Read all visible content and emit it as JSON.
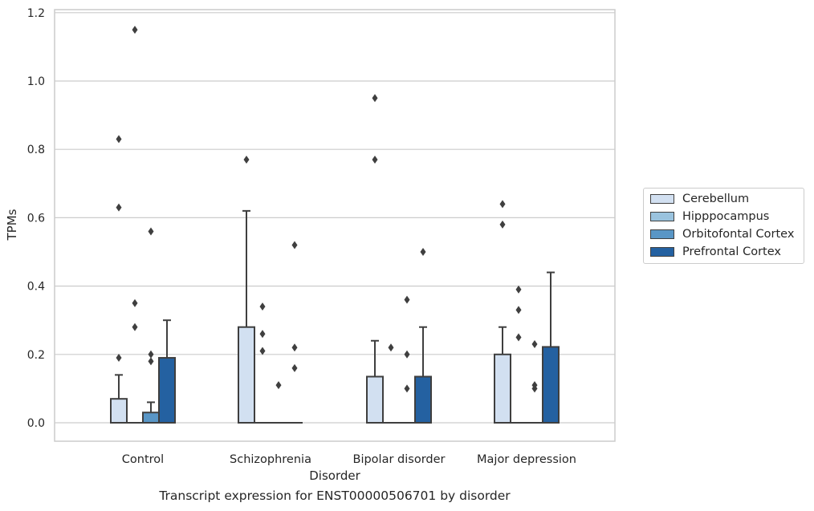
{
  "chart_data": {
    "type": "box",
    "title": "Transcript expression for ENST00000506701 by disorder",
    "xlabel": "Disorder",
    "ylabel": "TPMs",
    "ylim": [
      -0.055,
      1.21
    ],
    "yticks": [
      "0.0",
      "0.2",
      "0.4",
      "0.6",
      "0.8",
      "1.0",
      "1.2"
    ],
    "categories": [
      "Control",
      "Schizophrenia",
      "Bipolar disorder",
      "Major depression"
    ],
    "grid": "horizontal",
    "legend_position": "right",
    "series": [
      {
        "name": "Cerebellum",
        "color": "#d2e0f1",
        "boxes": [
          {
            "q1": 0.0,
            "median": 0.0,
            "q3": 0.07,
            "whisker_low": 0.0,
            "whisker_high": 0.14,
            "outliers": [
              0.19,
              0.63,
              0.83
            ]
          },
          {
            "q1": 0.0,
            "median": 0.0,
            "q3": 0.28,
            "whisker_low": 0.0,
            "whisker_high": 0.62,
            "outliers": [
              0.77
            ]
          },
          {
            "q1": 0.0,
            "median": 0.0,
            "q3": 0.135,
            "whisker_low": 0.0,
            "whisker_high": 0.24,
            "outliers": [
              0.77,
              0.95
            ]
          },
          {
            "q1": 0.0,
            "median": 0.0,
            "q3": 0.2,
            "whisker_low": 0.0,
            "whisker_high": 0.28,
            "outliers": [
              0.58,
              0.64
            ]
          }
        ]
      },
      {
        "name": "Hipppocampus",
        "color": "#9ac3de",
        "boxes": [
          {
            "q1": 0.0,
            "median": 0.0,
            "q3": 0.0,
            "whisker_low": 0.0,
            "whisker_high": 0.0,
            "outliers": [
              0.28,
              0.35,
              1.15
            ]
          },
          {
            "q1": 0.0,
            "median": 0.0,
            "q3": 0.0,
            "whisker_low": 0.0,
            "whisker_high": 0.0,
            "outliers": [
              0.21,
              0.26,
              0.34
            ]
          },
          {
            "q1": 0.0,
            "median": 0.0,
            "q3": 0.0,
            "whisker_low": 0.0,
            "whisker_high": 0.0,
            "outliers": [
              0.22
            ]
          },
          {
            "q1": 0.0,
            "median": 0.0,
            "q3": 0.0,
            "whisker_low": 0.0,
            "whisker_high": 0.0,
            "outliers": [
              0.25,
              0.33,
              0.39
            ]
          }
        ]
      },
      {
        "name": "Orbitofontal Cortex",
        "color": "#5996c6",
        "boxes": [
          {
            "q1": 0.0,
            "median": 0.0,
            "q3": 0.03,
            "whisker_low": 0.0,
            "whisker_high": 0.06,
            "outliers": [
              0.18,
              0.2,
              0.56
            ]
          },
          {
            "q1": 0.0,
            "median": 0.0,
            "q3": 0.0,
            "whisker_low": 0.0,
            "whisker_high": 0.0,
            "outliers": [
              0.11
            ]
          },
          {
            "q1": 0.0,
            "median": 0.0,
            "q3": 0.0,
            "whisker_low": 0.0,
            "whisker_high": 0.0,
            "outliers": [
              0.1,
              0.2,
              0.36
            ]
          },
          {
            "q1": 0.0,
            "median": 0.0,
            "q3": 0.0,
            "whisker_low": 0.0,
            "whisker_high": 0.0,
            "outliers": [
              0.1,
              0.11,
              0.23
            ]
          }
        ]
      },
      {
        "name": "Prefrontal Cortex",
        "color": "#2461a1",
        "boxes": [
          {
            "q1": 0.0,
            "median": 0.0,
            "q3": 0.19,
            "whisker_low": 0.0,
            "whisker_high": 0.3,
            "outliers": []
          },
          {
            "q1": 0.0,
            "median": 0.0,
            "q3": 0.0,
            "whisker_low": 0.0,
            "whisker_high": 0.0,
            "outliers": [
              0.16,
              0.22,
              0.52
            ]
          },
          {
            "q1": 0.0,
            "median": 0.0,
            "q3": 0.135,
            "whisker_low": 0.0,
            "whisker_high": 0.28,
            "outliers": [
              0.5
            ]
          },
          {
            "q1": 0.0,
            "median": 0.0,
            "q3": 0.222,
            "whisker_low": 0.0,
            "whisker_high": 0.44,
            "outliers": []
          }
        ]
      }
    ]
  }
}
